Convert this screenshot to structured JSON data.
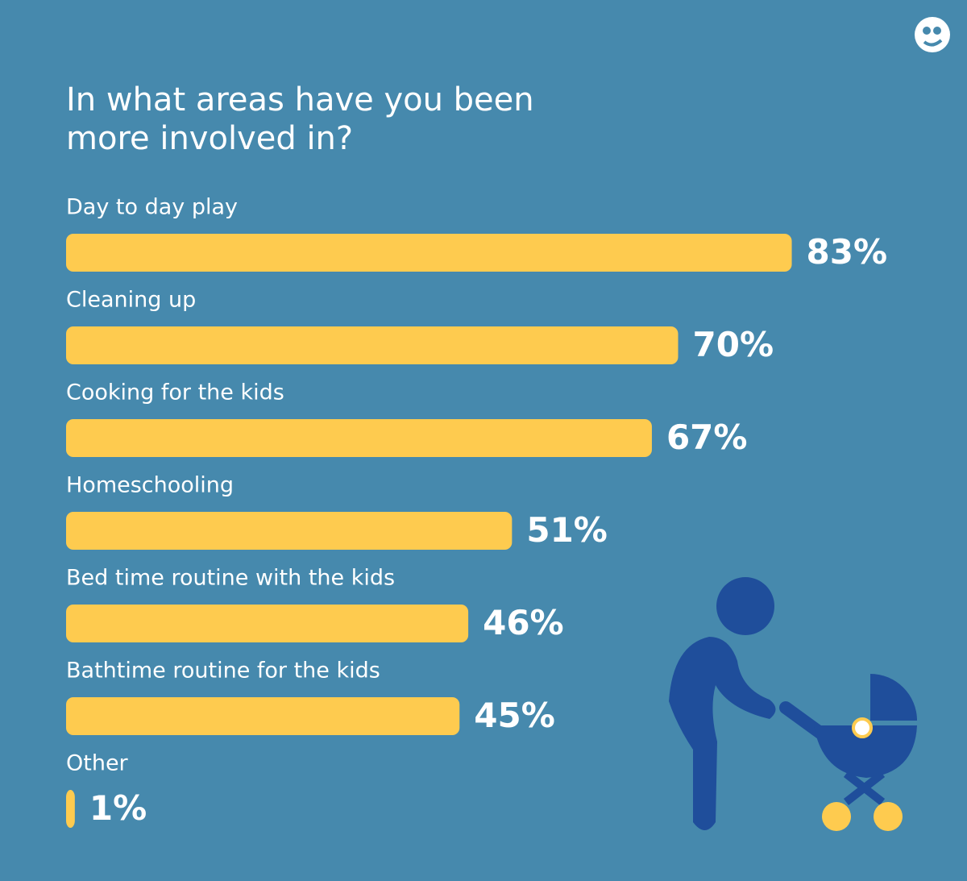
{
  "chart_data": {
    "type": "bar",
    "orientation": "horizontal",
    "title": "In what areas have you been more involved in?",
    "categories": [
      "Day to day play",
      "Cleaning up",
      "Cooking for the kids",
      "Homeschooling",
      "Bed time routine with the kids",
      "Bathtime routine for the kids",
      "Other"
    ],
    "values": [
      83,
      70,
      67,
      51,
      46,
      45,
      1
    ],
    "value_labels": [
      "83%",
      "70%",
      "67%",
      "51%",
      "46%",
      "45%",
      "1%"
    ],
    "color": "#fecb4f"
  }
}
